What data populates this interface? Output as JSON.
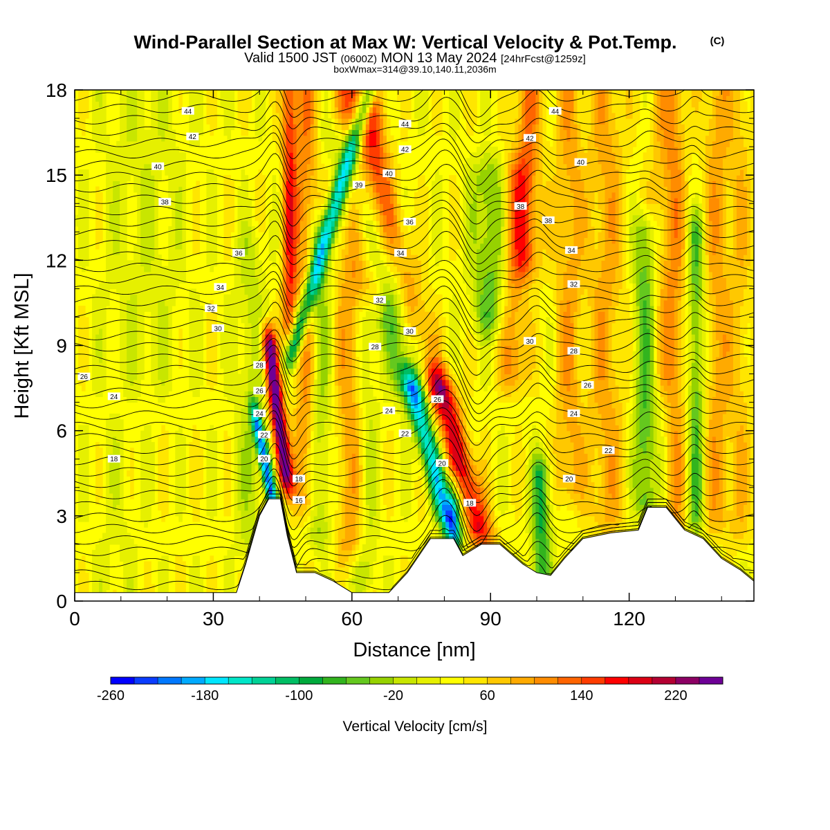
{
  "title": {
    "main": "Wind-Parallel Section at Max W: Vertical Velocity & Pot.Temp.",
    "copyright": "(C)",
    "valid_prefix": "Valid 1500 JST",
    "valid_utc": "(0600Z)",
    "valid_date": "MON 13 May 2024",
    "forecast": "[24hrFcst@1259z]",
    "box_info": "boxWmax=314@39.10,140.11,2036m"
  },
  "colors": {
    "scale": [
      "#0000ff",
      "#0a3cff",
      "#0078ff",
      "#00aaff",
      "#00e6ff",
      "#00e6c8",
      "#00d296",
      "#00be64",
      "#00aa3c",
      "#32b41e",
      "#64c81e",
      "#96d200",
      "#c8e600",
      "#e6f000",
      "#ffff00",
      "#ffe600",
      "#ffc800",
      "#ffaa00",
      "#ff8c00",
      "#ff6400",
      "#ff3c00",
      "#ff0000",
      "#dc0014",
      "#b40032",
      "#8c0064",
      "#6e0096"
    ]
  },
  "chart_data": {
    "type": "heatmap",
    "xlabel": "Distance [nm]",
    "ylabel": "Height [Kft MSL]",
    "xlim": [
      0,
      147
    ],
    "ylim": [
      0,
      18
    ],
    "xticks": [
      0,
      30,
      60,
      90,
      120
    ],
    "yticks": [
      0,
      3,
      6,
      9,
      12,
      15,
      18
    ],
    "xtick_labels": [
      "0",
      "30",
      "60",
      "90",
      "120"
    ],
    "ytick_labels": [
      "0",
      "3",
      "6",
      "9",
      "12",
      "15",
      "18"
    ],
    "colorbar": {
      "title": "Vertical Velocity [cm/s]",
      "min": -260,
      "max": 260,
      "step": 20,
      "tick_values": [
        -260,
        -180,
        -100,
        -20,
        60,
        140,
        220
      ],
      "tick_labels": [
        "-260",
        "-180",
        "-100",
        "-20",
        "60",
        "140",
        "220"
      ]
    },
    "terrain": [
      [
        0,
        0.3
      ],
      [
        35,
        0.3
      ],
      [
        37,
        1.3
      ],
      [
        40,
        3.0
      ],
      [
        42,
        3.6
      ],
      [
        44.5,
        3.6
      ],
      [
        46,
        2.3
      ],
      [
        48,
        1.0
      ],
      [
        52,
        1.0
      ],
      [
        56,
        0.7
      ],
      [
        60,
        0.3
      ],
      [
        68,
        0.3
      ],
      [
        72,
        1.0
      ],
      [
        77,
        2.2
      ],
      [
        82,
        2.2
      ],
      [
        84,
        1.6
      ],
      [
        88,
        2.0
      ],
      [
        92,
        2.0
      ],
      [
        97,
        1.3
      ],
      [
        100,
        1.0
      ],
      [
        103,
        0.9
      ],
      [
        106,
        1.5
      ],
      [
        110,
        2.2
      ],
      [
        116,
        2.4
      ],
      [
        122,
        2.5
      ],
      [
        124,
        3.3
      ],
      [
        128,
        3.3
      ],
      [
        132,
        2.5
      ],
      [
        136,
        2.2
      ],
      [
        140,
        1.5
      ],
      [
        144,
        1.1
      ],
      [
        147,
        0.7
      ]
    ],
    "velocity_features": [
      {
        "x": 45.5,
        "top": 9,
        "bottom": 4.5,
        "lean": -0.25,
        "w": 1.6,
        "v": 240
      },
      {
        "x": 47.5,
        "top": 18,
        "bottom": 9,
        "lean": 0.6,
        "w": 1.8,
        "v": -190
      },
      {
        "x": 42.5,
        "top": 6.2,
        "bottom": 3.8,
        "lean": -0.4,
        "w": 1.2,
        "v": -240
      },
      {
        "x": 46.5,
        "top": 18,
        "bottom": 9.5,
        "lean": 0,
        "w": 1.6,
        "v": 120
      },
      {
        "x": 50,
        "top": 18,
        "bottom": 3.5,
        "lean": 0,
        "w": 2.5,
        "v": 80
      },
      {
        "x": 53,
        "top": 13,
        "bottom": 2.5,
        "lean": 0,
        "w": 2.5,
        "v": -60
      },
      {
        "x": 60,
        "top": 18,
        "bottom": 2,
        "lean": 0,
        "w": 3.5,
        "v": 70
      },
      {
        "x": 63,
        "top": 10,
        "bottom": 1,
        "lean": 0,
        "w": 2.5,
        "v": -50
      },
      {
        "x": 65,
        "top": 18,
        "bottom": 11,
        "lean": 0,
        "w": 3,
        "v": 60
      },
      {
        "x": 80.5,
        "top": 7.5,
        "bottom": 3,
        "lean": -0.55,
        "w": 2.2,
        "v": -190
      },
      {
        "x": 82,
        "top": 3.5,
        "bottom": 2.2,
        "lean": 0,
        "w": 1.8,
        "v": -150
      },
      {
        "x": 87.5,
        "top": 7.5,
        "bottom": 2.5,
        "lean": -0.55,
        "w": 3,
        "v": 150
      },
      {
        "x": 73,
        "top": 16,
        "bottom": 7.5,
        "lean": -0.55,
        "w": 4,
        "v": -80
      },
      {
        "x": 78,
        "top": 18,
        "bottom": 7.5,
        "lean": -0.55,
        "w": 3.5,
        "v": 70
      },
      {
        "x": 90,
        "top": 15,
        "bottom": 10,
        "lean": 0,
        "w": 4,
        "v": -80
      },
      {
        "x": 95,
        "top": 15,
        "bottom": 8,
        "lean": 0,
        "w": 3,
        "v": 80
      },
      {
        "x": 98,
        "top": 18,
        "bottom": 12,
        "lean": 0,
        "w": 3,
        "v": 90
      },
      {
        "x": 101,
        "top": 4.5,
        "bottom": 0.8,
        "lean": 0,
        "w": 2,
        "v": -110
      },
      {
        "x": 107,
        "top": 18,
        "bottom": 4,
        "lean": 0,
        "w": 3,
        "v": 60
      },
      {
        "x": 115,
        "top": 18,
        "bottom": 3,
        "lean": 0,
        "w": 4,
        "v": 60
      },
      {
        "x": 123.5,
        "top": 13,
        "bottom": 3.5,
        "lean": 0,
        "w": 2.5,
        "v": -90
      },
      {
        "x": 127,
        "top": 18,
        "bottom": 8,
        "lean": 0,
        "w": 3,
        "v": 40
      },
      {
        "x": 130,
        "top": 18,
        "bottom": 3,
        "lean": 0,
        "w": 2.5,
        "v": 60
      },
      {
        "x": 134.5,
        "top": 13,
        "bottom": 3,
        "lean": 0,
        "w": 1.8,
        "v": -90
      },
      {
        "x": 139,
        "top": 18,
        "bottom": 3,
        "lean": 0,
        "w": 3,
        "v": 60
      },
      {
        "x": 144,
        "top": 18,
        "bottom": 2.5,
        "lean": 0,
        "w": 2.5,
        "v": 40
      },
      {
        "x": 15,
        "top": 18,
        "bottom": 8,
        "lean": 0,
        "w": 9,
        "v": -25
      },
      {
        "x": 9,
        "top": 6,
        "bottom": 0.5,
        "lean": 0,
        "w": 5,
        "v": -15
      },
      {
        "x": 38,
        "top": 12.5,
        "bottom": 2,
        "lean": 0,
        "w": 3,
        "v": -40
      }
    ],
    "contour_labels": [
      {
        "x": 24.5,
        "y": 17.25,
        "t": "44"
      },
      {
        "x": 25.5,
        "y": 16.35,
        "t": "42"
      },
      {
        "x": 18,
        "y": 15.3,
        "t": "40"
      },
      {
        "x": 19.5,
        "y": 14.05,
        "t": "38"
      },
      {
        "x": 35.5,
        "y": 12.25,
        "t": "36"
      },
      {
        "x": 31.5,
        "y": 11.05,
        "t": "34"
      },
      {
        "x": 29.5,
        "y": 10.3,
        "t": "32"
      },
      {
        "x": 31,
        "y": 9.6,
        "t": "30"
      },
      {
        "x": 2,
        "y": 7.9,
        "t": "26"
      },
      {
        "x": 8.5,
        "y": 7.2,
        "t": "24"
      },
      {
        "x": 8.5,
        "y": 5.0,
        "t": "18"
      },
      {
        "x": 40,
        "y": 8.3,
        "t": "28"
      },
      {
        "x": 40,
        "y": 7.4,
        "t": "26"
      },
      {
        "x": 40,
        "y": 6.6,
        "t": "24"
      },
      {
        "x": 41,
        "y": 5.85,
        "t": "22"
      },
      {
        "x": 41,
        "y": 5.0,
        "t": "20"
      },
      {
        "x": 48.5,
        "y": 4.3,
        "t": "18"
      },
      {
        "x": 48.5,
        "y": 3.55,
        "t": "16"
      },
      {
        "x": 71.5,
        "y": 16.8,
        "t": "44"
      },
      {
        "x": 71.5,
        "y": 15.9,
        "t": "42"
      },
      {
        "x": 68,
        "y": 15.05,
        "t": "40"
      },
      {
        "x": 61.5,
        "y": 14.65,
        "t": "39"
      },
      {
        "x": 72.5,
        "y": 13.35,
        "t": "36"
      },
      {
        "x": 70.5,
        "y": 12.25,
        "t": "34"
      },
      {
        "x": 66,
        "y": 10.6,
        "t": "32"
      },
      {
        "x": 72.5,
        "y": 9.5,
        "t": "30"
      },
      {
        "x": 65,
        "y": 8.95,
        "t": "28"
      },
      {
        "x": 68,
        "y": 6.7,
        "t": "24"
      },
      {
        "x": 71.5,
        "y": 5.9,
        "t": "22"
      },
      {
        "x": 78.5,
        "y": 7.1,
        "t": "26"
      },
      {
        "x": 79.5,
        "y": 4.85,
        "t": "20"
      },
      {
        "x": 85.5,
        "y": 3.45,
        "t": "18"
      },
      {
        "x": 104,
        "y": 17.25,
        "t": "44"
      },
      {
        "x": 98.5,
        "y": 16.3,
        "t": "42"
      },
      {
        "x": 109.5,
        "y": 15.45,
        "t": "40"
      },
      {
        "x": 96.5,
        "y": 13.9,
        "t": "38"
      },
      {
        "x": 102.5,
        "y": 13.4,
        "t": "38"
      },
      {
        "x": 107.5,
        "y": 12.35,
        "t": "34"
      },
      {
        "x": 108,
        "y": 11.15,
        "t": "32"
      },
      {
        "x": 98.5,
        "y": 9.15,
        "t": "30"
      },
      {
        "x": 108,
        "y": 8.8,
        "t": "28"
      },
      {
        "x": 111,
        "y": 7.6,
        "t": "26"
      },
      {
        "x": 108,
        "y": 6.6,
        "t": "24"
      },
      {
        "x": 115.5,
        "y": 5.3,
        "t": "22"
      },
      {
        "x": 107,
        "y": 4.3,
        "t": "20"
      }
    ]
  }
}
